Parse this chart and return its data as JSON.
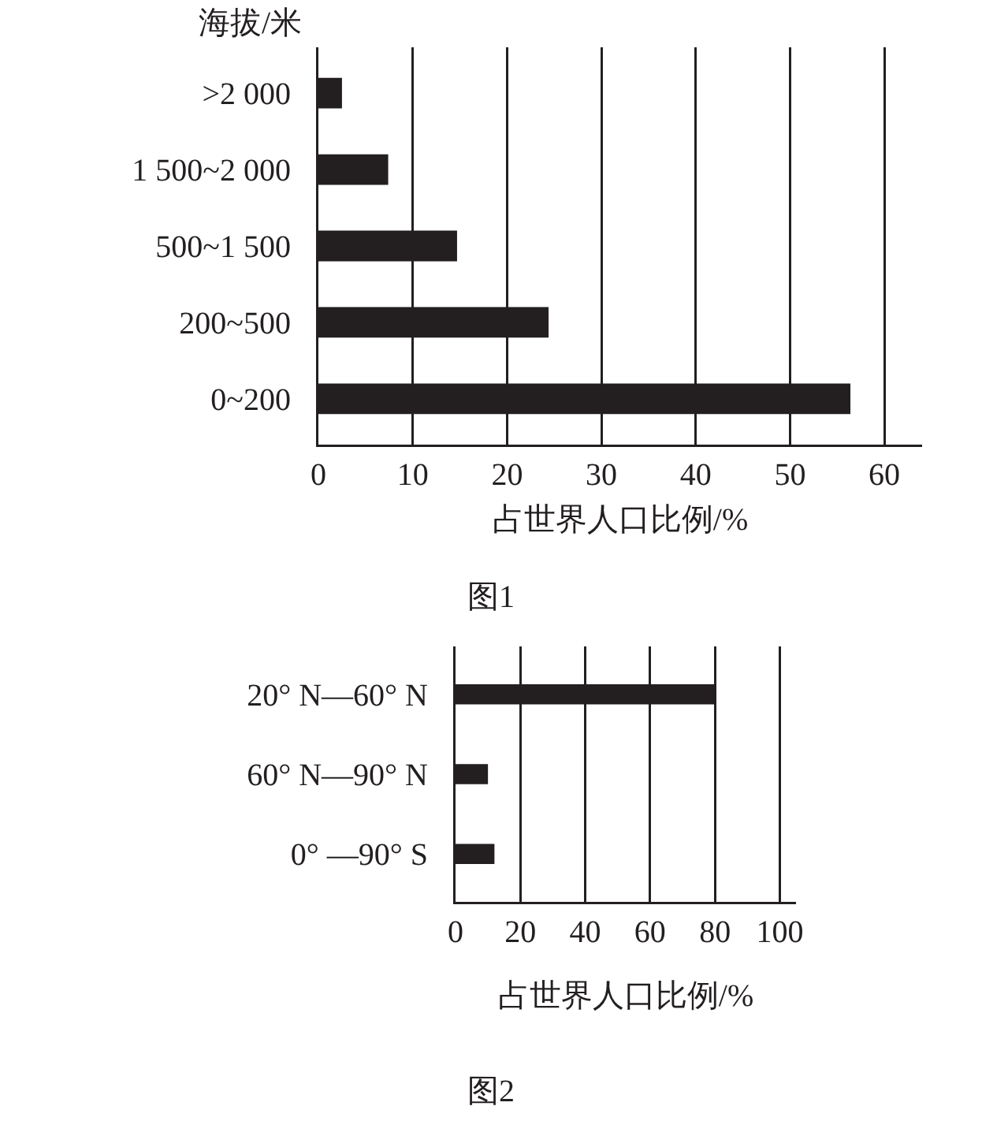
{
  "chart_data": [
    {
      "type": "bar",
      "orientation": "horizontal",
      "title": "图1",
      "xlabel": "占世界人口比例/%",
      "ylabel": "海拔/米",
      "categories": [
        ">2 000",
        "1 500~2 000",
        "500~1 500",
        "200~500",
        "0~200"
      ],
      "values": [
        2.5,
        7.4,
        14.7,
        24.4,
        56.4
      ],
      "color": "#231f20",
      "xlim": [
        0,
        64
      ],
      "xticks": [
        0,
        10,
        20,
        30,
        40,
        50,
        60
      ],
      "grid": "x"
    },
    {
      "type": "bar",
      "orientation": "horizontal",
      "title": "图2",
      "xlabel": "占世界人口比例/%",
      "categories": [
        "20° N—60° N",
        "60° N—90° N",
        "0° —90° S"
      ],
      "values": [
        80,
        10,
        12
      ],
      "color": "#231f20",
      "xlim": [
        0,
        105
      ],
      "xticks": [
        0,
        20,
        40,
        60,
        80,
        100
      ],
      "grid": "x"
    }
  ]
}
